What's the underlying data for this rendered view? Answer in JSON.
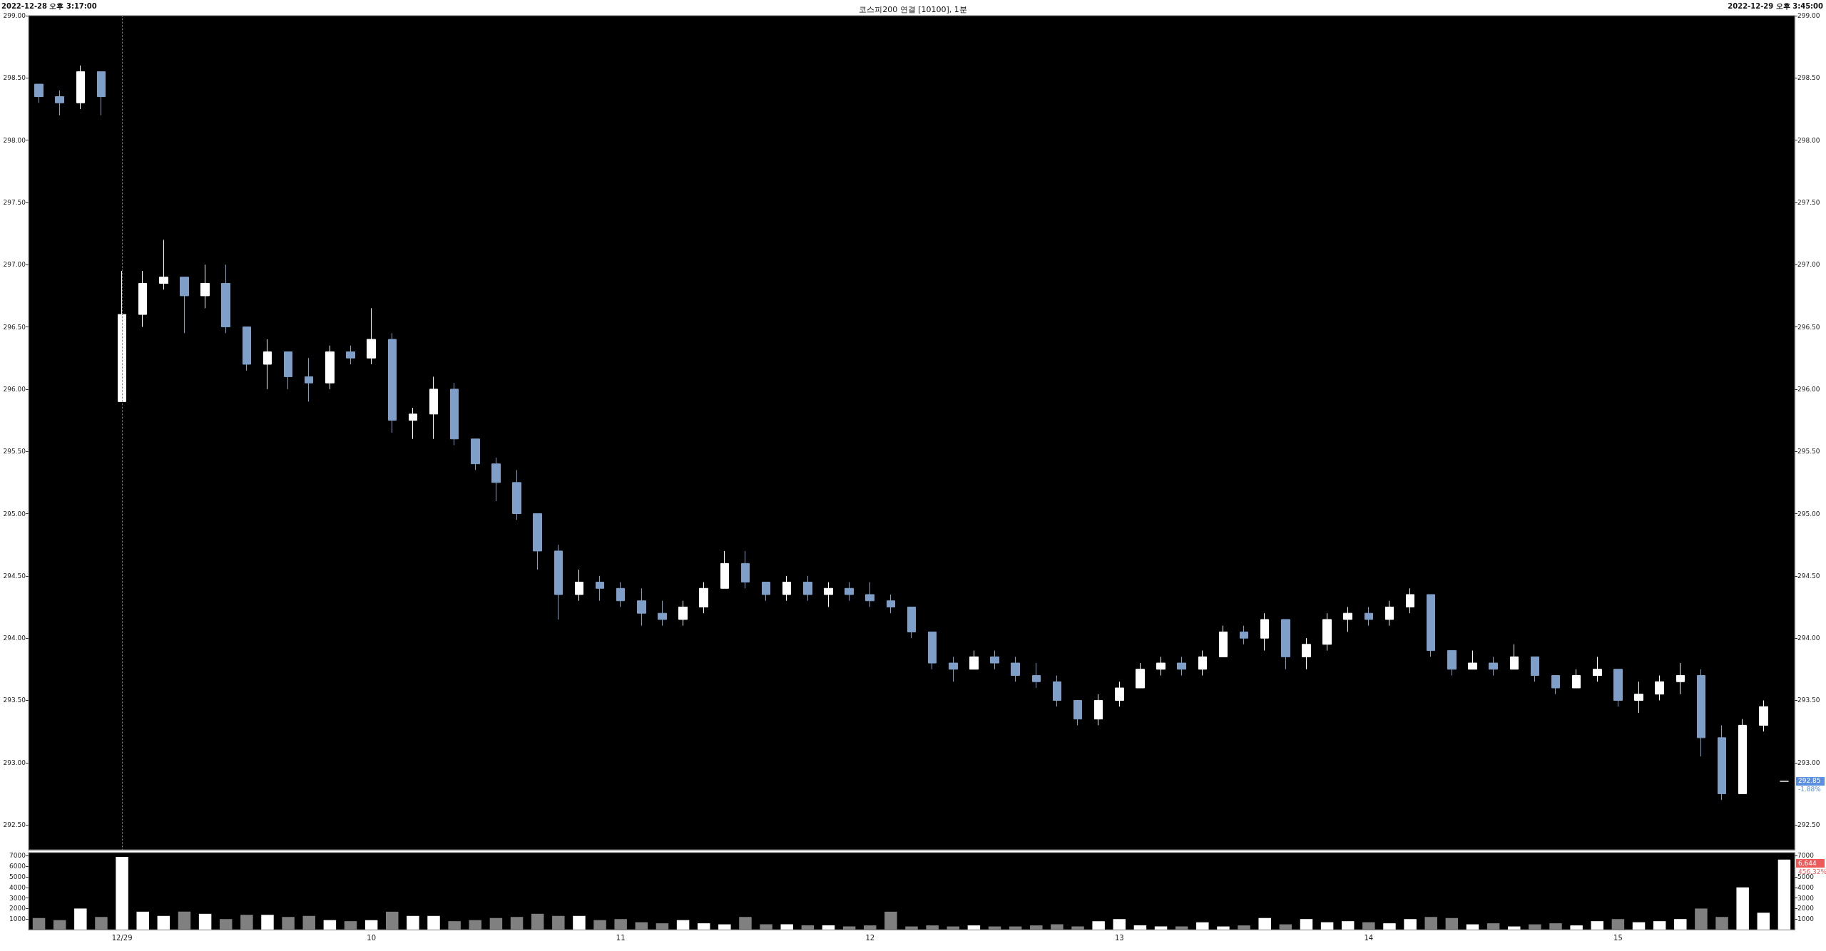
{
  "chart_data": [
    {
      "type": "candlestick",
      "title": "코스피200 연결 [10100], 1분",
      "categories": [
        null,
        null,
        null,
        null,
        "12/29",
        null,
        null,
        null,
        null,
        null,
        null,
        null,
        null,
        null,
        null,
        null,
        "10",
        null,
        null,
        null,
        null,
        null,
        null,
        null,
        null,
        null,
        null,
        null,
        "11",
        null,
        null,
        null,
        null,
        null,
        null,
        null,
        null,
        null,
        null,
        null,
        "12",
        null,
        null,
        null,
        null,
        null,
        null,
        null,
        null,
        null,
        null,
        null,
        "13",
        null,
        null,
        null,
        null,
        null,
        null,
        null,
        null,
        null,
        null,
        null,
        "14",
        null,
        null,
        null,
        null,
        null,
        null,
        null,
        null,
        null,
        null,
        null,
        "15",
        null,
        null,
        null,
        null,
        null,
        null,
        null,
        null
      ],
      "ohlc": [
        [
          298.45,
          298.45,
          298.3,
          298.35
        ],
        [
          298.35,
          298.4,
          298.2,
          298.3
        ],
        [
          298.3,
          298.6,
          298.25,
          298.55
        ],
        [
          298.55,
          298.55,
          298.2,
          298.35
        ],
        [
          295.9,
          296.95,
          295.9,
          296.6
        ],
        [
          296.6,
          296.95,
          296.5,
          296.85
        ],
        [
          296.85,
          297.2,
          296.8,
          296.9
        ],
        [
          296.9,
          296.9,
          296.45,
          296.75
        ],
        [
          296.75,
          297.0,
          296.65,
          296.85
        ],
        [
          296.85,
          297.0,
          296.45,
          296.5
        ],
        [
          296.5,
          296.5,
          296.15,
          296.2
        ],
        [
          296.2,
          296.4,
          296.0,
          296.3
        ],
        [
          296.3,
          296.3,
          296.0,
          296.1
        ],
        [
          296.1,
          296.25,
          295.9,
          296.05
        ],
        [
          296.05,
          296.35,
          296.0,
          296.3
        ],
        [
          296.3,
          296.35,
          296.2,
          296.25
        ],
        [
          296.25,
          296.65,
          296.2,
          296.4
        ],
        [
          296.4,
          296.45,
          295.65,
          295.75
        ],
        [
          295.75,
          295.85,
          295.6,
          295.8
        ],
        [
          295.8,
          296.1,
          295.6,
          296.0
        ],
        [
          296.0,
          296.05,
          295.55,
          295.6
        ],
        [
          295.6,
          295.6,
          295.35,
          295.4
        ],
        [
          295.4,
          295.45,
          295.1,
          295.25
        ],
        [
          295.25,
          295.35,
          294.95,
          295.0
        ],
        [
          295.0,
          295.0,
          294.55,
          294.7
        ],
        [
          294.7,
          294.75,
          294.15,
          294.35
        ],
        [
          294.35,
          294.55,
          294.3,
          294.45
        ],
        [
          294.45,
          294.5,
          294.3,
          294.4
        ],
        [
          294.4,
          294.45,
          294.25,
          294.3
        ],
        [
          294.3,
          294.4,
          294.1,
          294.2
        ],
        [
          294.2,
          294.3,
          294.1,
          294.15
        ],
        [
          294.15,
          294.3,
          294.1,
          294.25
        ],
        [
          294.25,
          294.45,
          294.2,
          294.4
        ],
        [
          294.4,
          294.7,
          294.4,
          294.6
        ],
        [
          294.6,
          294.7,
          294.4,
          294.45
        ],
        [
          294.45,
          294.45,
          294.3,
          294.35
        ],
        [
          294.35,
          294.5,
          294.3,
          294.45
        ],
        [
          294.45,
          294.5,
          294.3,
          294.35
        ],
        [
          294.35,
          294.45,
          294.25,
          294.4
        ],
        [
          294.4,
          294.45,
          294.3,
          294.35
        ],
        [
          294.35,
          294.45,
          294.25,
          294.3
        ],
        [
          294.3,
          294.35,
          294.2,
          294.25
        ],
        [
          294.25,
          294.25,
          294.0,
          294.05
        ],
        [
          294.05,
          294.05,
          293.75,
          293.8
        ],
        [
          293.8,
          293.85,
          293.65,
          293.75
        ],
        [
          293.75,
          293.9,
          293.75,
          293.85
        ],
        [
          293.85,
          293.9,
          293.75,
          293.8
        ],
        [
          293.8,
          293.85,
          293.65,
          293.7
        ],
        [
          293.7,
          293.8,
          293.6,
          293.65
        ],
        [
          293.65,
          293.7,
          293.45,
          293.5
        ],
        [
          293.5,
          293.5,
          293.3,
          293.35
        ],
        [
          293.35,
          293.55,
          293.3,
          293.5
        ],
        [
          293.5,
          293.65,
          293.45,
          293.6
        ],
        [
          293.6,
          293.8,
          293.6,
          293.75
        ],
        [
          293.75,
          293.85,
          293.7,
          293.8
        ],
        [
          293.8,
          293.85,
          293.7,
          293.75
        ],
        [
          293.75,
          293.9,
          293.7,
          293.85
        ],
        [
          293.85,
          294.1,
          293.85,
          294.05
        ],
        [
          294.05,
          294.1,
          293.95,
          294.0
        ],
        [
          294.0,
          294.2,
          293.9,
          294.15
        ],
        [
          294.15,
          294.15,
          293.75,
          293.85
        ],
        [
          293.85,
          294.0,
          293.75,
          293.95
        ],
        [
          293.95,
          294.2,
          293.9,
          294.15
        ],
        [
          294.15,
          294.25,
          294.05,
          294.2
        ],
        [
          294.2,
          294.25,
          294.1,
          294.15
        ],
        [
          294.15,
          294.3,
          294.1,
          294.25
        ],
        [
          294.25,
          294.4,
          294.2,
          294.35
        ],
        [
          294.35,
          294.35,
          293.85,
          293.9
        ],
        [
          293.9,
          293.9,
          293.7,
          293.75
        ],
        [
          293.75,
          293.9,
          293.75,
          293.8
        ],
        [
          293.8,
          293.85,
          293.7,
          293.75
        ],
        [
          293.75,
          293.95,
          293.75,
          293.85
        ],
        [
          293.85,
          293.85,
          293.65,
          293.7
        ],
        [
          293.7,
          293.7,
          293.55,
          293.6
        ],
        [
          293.6,
          293.75,
          293.6,
          293.7
        ],
        [
          293.7,
          293.85,
          293.65,
          293.75
        ],
        [
          293.75,
          293.75,
          293.45,
          293.5
        ],
        [
          293.5,
          293.65,
          293.4,
          293.55
        ],
        [
          293.55,
          293.7,
          293.5,
          293.65
        ],
        [
          293.65,
          293.8,
          293.55,
          293.7
        ],
        [
          293.7,
          293.75,
          293.05,
          293.2
        ],
        [
          293.2,
          293.3,
          292.7,
          292.75
        ],
        [
          292.75,
          293.35,
          292.75,
          293.3
        ],
        [
          293.3,
          293.5,
          293.25,
          293.45
        ],
        [
          292.85,
          292.85,
          292.85,
          292.85
        ]
      ],
      "colors": [
        "#7f9fc8",
        "#7f9fc8",
        "#ffffff",
        "#7f9fc8",
        "#ffffff",
        "#ffffff",
        "#ffffff",
        "#7f9fc8",
        "#ffffff",
        "#7f9fc8",
        "#7f9fc8",
        "#ffffff",
        "#7f9fc8",
        "#7f9fc8",
        "#ffffff",
        "#7f9fc8",
        "#ffffff",
        "#7f9fc8",
        "#ffffff",
        "#ffffff",
        "#7f9fc8",
        "#7f9fc8",
        "#7f9fc8",
        "#7f9fc8",
        "#7f9fc8",
        "#7f9fc8",
        "#ffffff",
        "#7f9fc8",
        "#7f9fc8",
        "#7f9fc8",
        "#7f9fc8",
        "#ffffff",
        "#ffffff",
        "#ffffff",
        "#7f9fc8",
        "#7f9fc8",
        "#ffffff",
        "#7f9fc8",
        "#ffffff",
        "#7f9fc8",
        "#7f9fc8",
        "#7f9fc8",
        "#7f9fc8",
        "#7f9fc8",
        "#7f9fc8",
        "#ffffff",
        "#7f9fc8",
        "#7f9fc8",
        "#7f9fc8",
        "#7f9fc8",
        "#7f9fc8",
        "#ffffff",
        "#ffffff",
        "#ffffff",
        "#ffffff",
        "#7f9fc8",
        "#ffffff",
        "#ffffff",
        "#7f9fc8",
        "#ffffff",
        "#7f9fc8",
        "#ffffff",
        "#ffffff",
        "#ffffff",
        "#7f9fc8",
        "#ffffff",
        "#ffffff",
        "#7f9fc8",
        "#7f9fc8",
        "#ffffff",
        "#7f9fc8",
        "#ffffff",
        "#7f9fc8",
        "#7f9fc8",
        "#ffffff",
        "#ffffff",
        "#7f9fc8",
        "#ffffff",
        "#ffffff",
        "#ffffff",
        "#7f9fc8",
        "#7f9fc8",
        "#ffffff",
        "#ffffff",
        "#ffffff"
      ],
      "ylim": [
        292.3,
        299.0
      ],
      "yticks": [
        {
          "value": 292.5,
          "label": "292.50"
        },
        {
          "value": 293,
          "label": "293.00"
        },
        {
          "value": 293.5,
          "label": "293.50"
        },
        {
          "value": 294,
          "label": "294.00"
        },
        {
          "value": 294.5,
          "label": "294.50"
        },
        {
          "value": 295,
          "label": "295.00"
        },
        {
          "value": 295.5,
          "label": "295.50"
        },
        {
          "value": 296,
          "label": "296.00"
        },
        {
          "value": 296.5,
          "label": "296.50"
        },
        {
          "value": 297,
          "label": "297.00"
        },
        {
          "value": 297.5,
          "label": "297.50"
        },
        {
          "value": 298,
          "label": "298.00"
        },
        {
          "value": 298.5,
          "label": "298.50"
        },
        {
          "value": 299,
          "label": "299.00"
        }
      ],
      "y2lim": [
        292.3,
        299.0
      ],
      "y2ticks": [
        {
          "value": 292.5,
          "label": "292.50"
        },
        {
          "value": 293,
          "label": "293.00"
        },
        {
          "value": 293.5,
          "label": "293.50"
        },
        {
          "value": 294,
          "label": "294.00"
        },
        {
          "value": 294.5,
          "label": "294.50"
        },
        {
          "value": 295,
          "label": "295.00"
        },
        {
          "value": 295.5,
          "label": "295.50"
        },
        {
          "value": 296,
          "label": "296.00"
        },
        {
          "value": 296.5,
          "label": "296.50"
        },
        {
          "value": 297,
          "label": "297.00"
        },
        {
          "value": 297.5,
          "label": "297.50"
        },
        {
          "value": 298,
          "label": "298.00"
        },
        {
          "value": 298.5,
          "label": "298.50"
        },
        {
          "value": 299,
          "label": "299.00"
        }
      ],
      "tick_labels": "y",
      "ref_lines": [
        {
          "axis": "x",
          "value": "12/29",
          "color": "#808080",
          "line_style": "dotted"
        }
      ],
      "annotations": [
        "2022-12-28 오후 3:17:00",
        "2022-12-29 오후 3:45:00",
        "292.85",
        "-1.88%"
      ]
    },
    {
      "type": "bar",
      "categories": [
        null,
        null,
        null,
        null,
        "12/29",
        null,
        null,
        null,
        null,
        null,
        null,
        null,
        null,
        null,
        null,
        null,
        "10",
        null,
        null,
        null,
        null,
        null,
        null,
        null,
        null,
        null,
        null,
        null,
        "11",
        null,
        null,
        null,
        null,
        null,
        null,
        null,
        null,
        null,
        null,
        null,
        "12",
        null,
        null,
        null,
        null,
        null,
        null,
        null,
        null,
        null,
        null,
        null,
        "13",
        null,
        null,
        null,
        null,
        null,
        null,
        null,
        null,
        null,
        null,
        null,
        "14",
        null,
        null,
        null,
        null,
        null,
        null,
        null,
        null,
        null,
        null,
        null,
        "15",
        null,
        null,
        null,
        null,
        null,
        null,
        null,
        null
      ],
      "values": [
        1100,
        900,
        2000,
        1200,
        6900,
        1700,
        1300,
        1700,
        1500,
        1000,
        1400,
        1400,
        1200,
        1300,
        900,
        800,
        900,
        1700,
        1300,
        1300,
        800,
        900,
        1100,
        1200,
        1500,
        1300,
        1300,
        900,
        1000,
        700,
        600,
        900,
        600,
        500,
        1200,
        500,
        500,
        400,
        400,
        300,
        400,
        1700,
        300,
        400,
        300,
        400,
        300,
        300,
        400,
        500,
        300,
        800,
        1000,
        400,
        300,
        300,
        700,
        300,
        400,
        1100,
        500,
        1000,
        700,
        800,
        700,
        600,
        1000,
        1200,
        1100,
        500,
        600,
        300,
        500,
        600,
        400,
        800,
        1000,
        700,
        800,
        1000,
        2000,
        1200,
        4000,
        1600,
        6644
      ],
      "colors": [
        "#808080",
        "#808080",
        "#ffffff",
        "#808080",
        "#ffffff",
        "#ffffff",
        "#ffffff",
        "#808080",
        "#ffffff",
        "#808080",
        "#808080",
        "#ffffff",
        "#808080",
        "#808080",
        "#ffffff",
        "#808080",
        "#ffffff",
        "#808080",
        "#ffffff",
        "#ffffff",
        "#808080",
        "#808080",
        "#808080",
        "#808080",
        "#808080",
        "#808080",
        "#ffffff",
        "#808080",
        "#808080",
        "#808080",
        "#808080",
        "#ffffff",
        "#ffffff",
        "#ffffff",
        "#808080",
        "#808080",
        "#ffffff",
        "#808080",
        "#ffffff",
        "#808080",
        "#808080",
        "#808080",
        "#808080",
        "#808080",
        "#808080",
        "#ffffff",
        "#808080",
        "#808080",
        "#808080",
        "#808080",
        "#808080",
        "#ffffff",
        "#ffffff",
        "#ffffff",
        "#ffffff",
        "#808080",
        "#ffffff",
        "#ffffff",
        "#808080",
        "#ffffff",
        "#808080",
        "#ffffff",
        "#ffffff",
        "#ffffff",
        "#808080",
        "#ffffff",
        "#ffffff",
        "#808080",
        "#808080",
        "#ffffff",
        "#808080",
        "#ffffff",
        "#808080",
        "#808080",
        "#ffffff",
        "#ffffff",
        "#808080",
        "#ffffff",
        "#ffffff",
        "#ffffff",
        "#808080",
        "#808080",
        "#ffffff",
        "#ffffff",
        "#ffffff"
      ],
      "ylim": [
        0,
        7300
      ],
      "yticks": [
        1000,
        2000,
        3000,
        4000,
        5000,
        6000,
        7000
      ],
      "y2lim": [
        0,
        7300
      ],
      "y2ticks": [
        1000,
        2000,
        3000,
        4000,
        5000,
        7000
      ],
      "annotations": [
        "6,644",
        "456.32%"
      ]
    }
  ]
}
